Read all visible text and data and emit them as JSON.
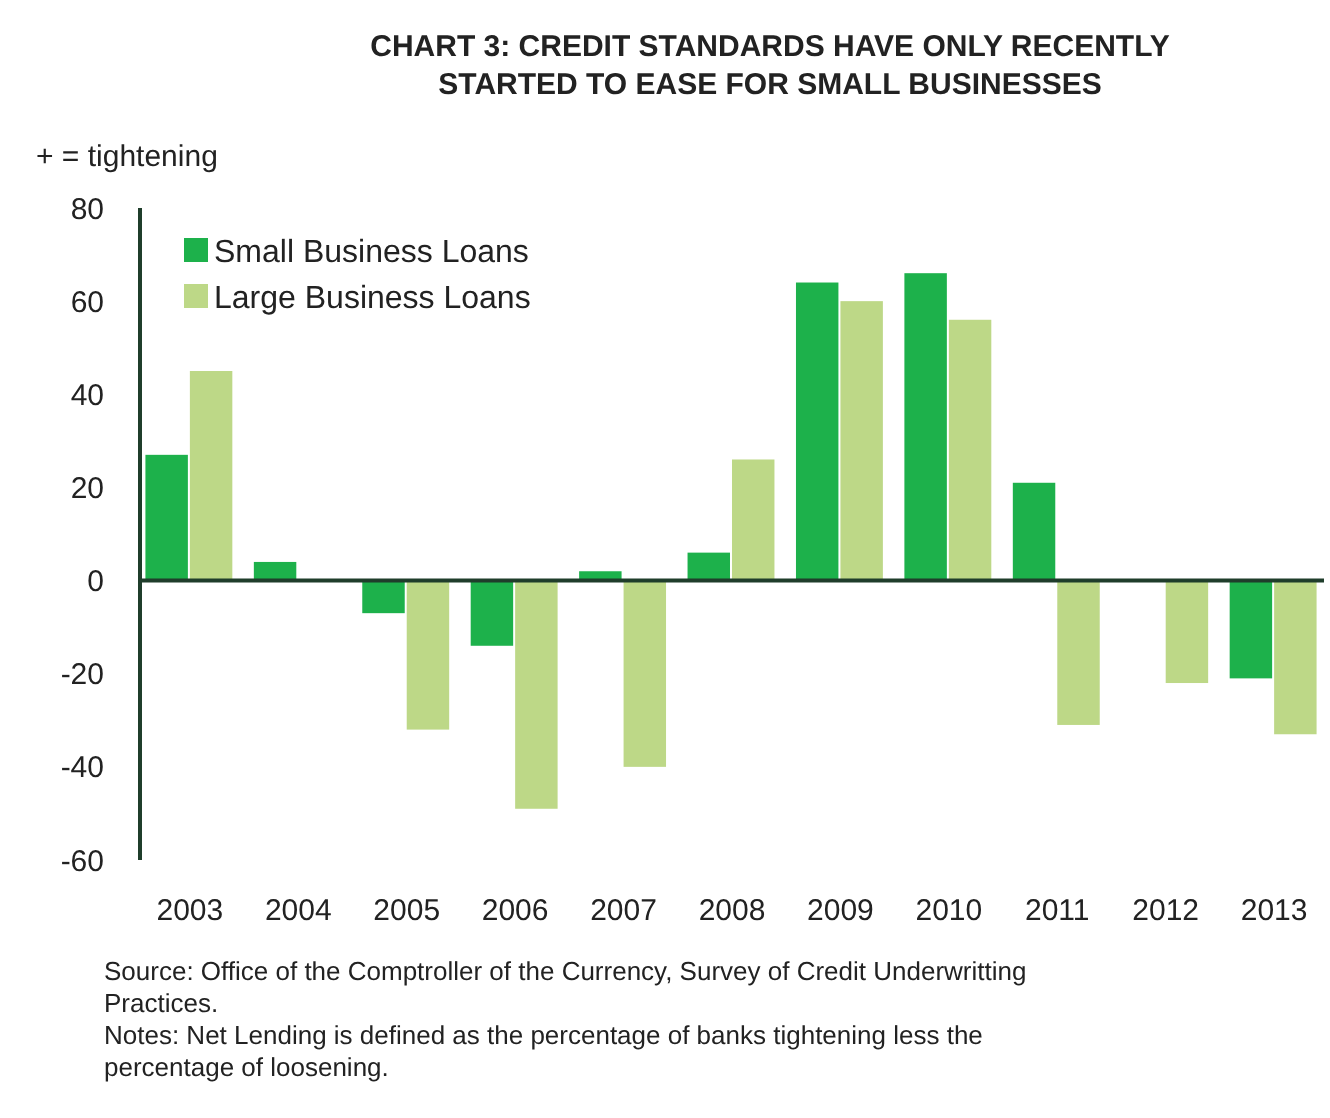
{
  "chart_data": {
    "type": "bar",
    "title": "CHART 3: CREDIT STANDARDS HAVE ONLY RECENTLY STARTED TO EASE FOR SMALL BUSINESSES",
    "ylabel": "+ = tightening",
    "categories": [
      "2003",
      "2004",
      "2005",
      "2006",
      "2007",
      "2008",
      "2009",
      "2010",
      "2011",
      "2012",
      "2013"
    ],
    "series": [
      {
        "name": "Small Business Loans",
        "color": "#1db14b",
        "values": [
          27,
          4,
          -7,
          -14,
          2,
          6,
          64,
          66,
          21,
          0,
          -21
        ]
      },
      {
        "name": "Large Business Loans",
        "color": "#bdd887",
        "values": [
          45,
          null,
          -32,
          -49,
          -40,
          26,
          60,
          56,
          -31,
          -22,
          -33
        ]
      }
    ],
    "ylim": [
      -60,
      80
    ],
    "yticks": [
      -60,
      -40,
      -20,
      0,
      20,
      40,
      60,
      80
    ],
    "legend": "top left",
    "annotations": [
      "Source: Office of the Comptroller of the Currency, Survey of Credit Underwritting Practices.",
      "Notes: Net Lending is defined as the percentage of banks tightening less the percentage of loosening."
    ]
  }
}
